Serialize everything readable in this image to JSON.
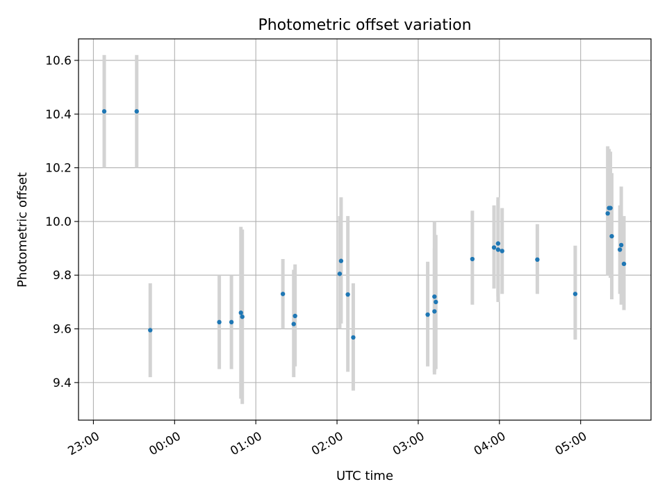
{
  "chart_data": {
    "type": "scatter",
    "title": "Photometric offset variation",
    "xlabel": "UTC time",
    "ylabel": "Photometric offset",
    "x_axis": {
      "type": "time",
      "range": [
        "22:49",
        "05:52"
      ],
      "ticks": [
        {
          "value": "23:00",
          "label": "23:00"
        },
        {
          "value": "00:00",
          "label": "00:00"
        },
        {
          "value": "01:00",
          "label": "01:00"
        },
        {
          "value": "02:00",
          "label": "02:00"
        },
        {
          "value": "03:00",
          "label": "03:00"
        },
        {
          "value": "04:00",
          "label": "04:00"
        },
        {
          "value": "05:00",
          "label": "05:00"
        }
      ]
    },
    "y_axis": {
      "range": [
        9.26,
        10.68
      ],
      "ticks": [
        {
          "value": 9.4,
          "label": "9.4"
        },
        {
          "value": 9.6,
          "label": "9.6"
        },
        {
          "value": 9.8,
          "label": "9.8"
        },
        {
          "value": 10.0,
          "label": "10.0"
        },
        {
          "value": 10.2,
          "label": "10.2"
        },
        {
          "value": 10.4,
          "label": "10.4"
        },
        {
          "value": 10.6,
          "label": "10.6"
        }
      ]
    },
    "grid": true,
    "marker_color": "#1f77b4",
    "errorbar_color": "#d3d3d3",
    "points": [
      {
        "x": "23:08",
        "y": 10.41,
        "yerr_low": 10.2,
        "yerr_high": 10.62
      },
      {
        "x": "23:32",
        "y": 10.41,
        "yerr_low": 10.2,
        "yerr_high": 10.62
      },
      {
        "x": "23:42",
        "y": 9.595,
        "yerr_low": 9.42,
        "yerr_high": 9.77
      },
      {
        "x": "00:33",
        "y": 9.625,
        "yerr_low": 9.45,
        "yerr_high": 9.8
      },
      {
        "x": "00:42",
        "y": 9.625,
        "yerr_low": 9.45,
        "yerr_high": 9.8
      },
      {
        "x": "00:49",
        "y": 9.66,
        "yerr_low": 9.34,
        "yerr_high": 9.98
      },
      {
        "x": "00:50",
        "y": 9.645,
        "yerr_low": 9.32,
        "yerr_high": 9.97
      },
      {
        "x": "01:20",
        "y": 9.73,
        "yerr_low": 9.6,
        "yerr_high": 9.86
      },
      {
        "x": "01:28",
        "y": 9.618,
        "yerr_low": 9.42,
        "yerr_high": 9.82
      },
      {
        "x": "01:29",
        "y": 9.648,
        "yerr_low": 9.46,
        "yerr_high": 9.84
      },
      {
        "x": "02:02",
        "y": 9.805,
        "yerr_low": 9.6,
        "yerr_high": 10.02
      },
      {
        "x": "02:03",
        "y": 9.853,
        "yerr_low": 9.62,
        "yerr_high": 10.09
      },
      {
        "x": "02:08",
        "y": 9.728,
        "yerr_low": 9.44,
        "yerr_high": 10.02
      },
      {
        "x": "02:12",
        "y": 9.568,
        "yerr_low": 9.37,
        "yerr_high": 9.77
      },
      {
        "x": "03:07",
        "y": 9.653,
        "yerr_low": 9.46,
        "yerr_high": 9.85
      },
      {
        "x": "03:12",
        "y": 9.665,
        "yerr_low": 9.43,
        "yerr_high": 9.9
      },
      {
        "x": "03:12",
        "y": 9.72,
        "yerr_low": 9.44,
        "yerr_high": 10.0
      },
      {
        "x": "03:13",
        "y": 9.7,
        "yerr_low": 9.45,
        "yerr_high": 9.95
      },
      {
        "x": "03:40",
        "y": 9.86,
        "yerr_low": 9.69,
        "yerr_high": 10.04
      },
      {
        "x": "03:56",
        "y": 9.903,
        "yerr_low": 9.75,
        "yerr_high": 10.06
      },
      {
        "x": "03:59",
        "y": 9.918,
        "yerr_low": 9.72,
        "yerr_high": 10.08
      },
      {
        "x": "03:59",
        "y": 9.895,
        "yerr_low": 9.7,
        "yerr_high": 10.09
      },
      {
        "x": "04:02",
        "y": 9.89,
        "yerr_low": 9.73,
        "yerr_high": 10.05
      },
      {
        "x": "04:28",
        "y": 9.858,
        "yerr_low": 9.73,
        "yerr_high": 9.99
      },
      {
        "x": "04:56",
        "y": 9.73,
        "yerr_low": 9.56,
        "yerr_high": 9.91
      },
      {
        "x": "05:20",
        "y": 10.03,
        "yerr_low": 9.8,
        "yerr_high": 10.28
      },
      {
        "x": "05:21",
        "y": 10.05,
        "yerr_low": 9.82,
        "yerr_high": 10.27
      },
      {
        "x": "05:22",
        "y": 10.05,
        "yerr_low": 9.79,
        "yerr_high": 10.26
      },
      {
        "x": "05:23",
        "y": 9.945,
        "yerr_low": 9.71,
        "yerr_high": 10.18
      },
      {
        "x": "05:29",
        "y": 9.895,
        "yerr_low": 9.73,
        "yerr_high": 10.06
      },
      {
        "x": "05:30",
        "y": 9.912,
        "yerr_low": 9.69,
        "yerr_high": 10.13
      },
      {
        "x": "05:32",
        "y": 9.842,
        "yerr_low": 9.67,
        "yerr_high": 10.02
      }
    ]
  }
}
